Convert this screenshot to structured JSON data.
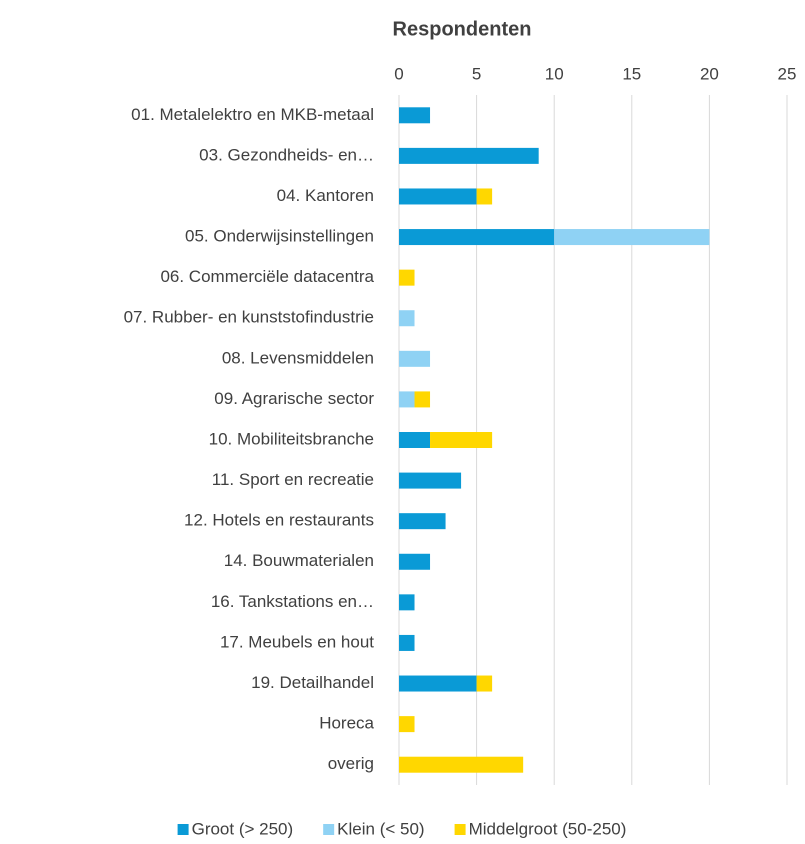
{
  "chart_data": {
    "type": "bar",
    "orientation": "horizontal",
    "stacked": true,
    "title": "Respondenten",
    "categories": [
      "01. Metalelektro en MKB-metaal",
      "03. Gezondheids- en…",
      "04. Kantoren",
      "05. Onderwijsinstellingen",
      "06. Commerciële datacentra",
      "07. Rubber- en kunststofindustrie",
      "08. Levensmiddelen",
      "09. Agrarische sector",
      "10. Mobiliteitsbranche",
      "11. Sport en recreatie",
      "12. Hotels en restaurants",
      "14. Bouwmaterialen",
      "16. Tankstations en…",
      "17. Meubels en hout",
      "19. Detailhandel",
      "Horeca",
      "overig"
    ],
    "series": [
      {
        "name": "Groot (> 250)",
        "color": "#0a9ad6",
        "values": [
          2,
          9,
          5,
          10,
          0,
          0,
          0,
          0,
          2,
          4,
          3,
          2,
          1,
          1,
          5,
          0,
          0
        ]
      },
      {
        "name": "Klein (< 50)",
        "color": "#8fd2f4",
        "values": [
          0,
          0,
          0,
          10,
          0,
          1,
          2,
          1,
          0,
          0,
          0,
          0,
          0,
          0,
          0,
          0,
          0
        ]
      },
      {
        "name": "Middelgroot (50-250)",
        "color": "#ffd700",
        "values": [
          0,
          0,
          1,
          0,
          1,
          0,
          0,
          1,
          4,
          0,
          0,
          0,
          0,
          0,
          1,
          1,
          8
        ]
      }
    ],
    "xlim": [
      0,
      25
    ],
    "xticks": [
      0,
      5,
      10,
      15,
      20,
      25
    ],
    "grid": true,
    "legend": "bottom"
  }
}
